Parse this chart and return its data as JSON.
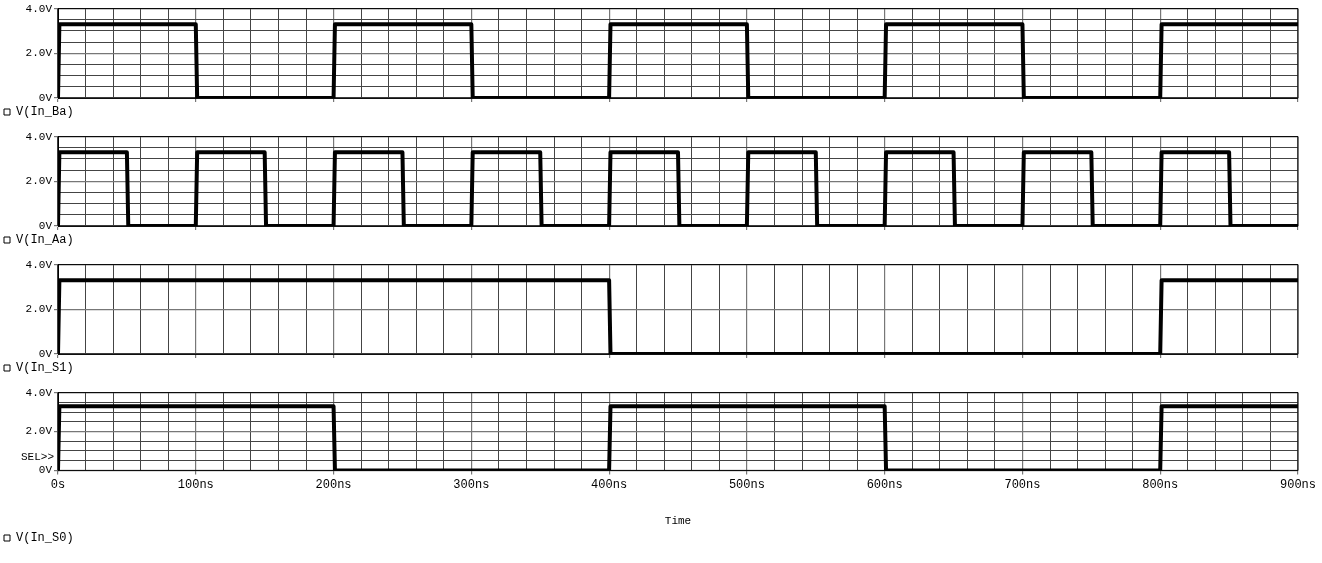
{
  "chart_data": [
    {
      "type": "line",
      "xlim": [
        0,
        900
      ],
      "ylim": [
        0,
        4
      ],
      "tick_labels": "y",
      "grid": true,
      "legend": "bottom left",
      "line_style": "solid",
      "xticks": [
        0,
        {
          "value": 20,
          "label": null
        },
        {
          "value": 40,
          "label": null
        },
        {
          "value": 60,
          "label": null
        },
        {
          "value": 80,
          "label": null
        },
        100,
        {
          "value": 120,
          "label": null
        },
        {
          "value": 140,
          "label": null
        },
        {
          "value": 160,
          "label": null
        },
        {
          "value": 180,
          "label": null
        },
        200,
        {
          "value": 220,
          "label": null
        },
        {
          "value": 240,
          "label": null
        },
        {
          "value": 260,
          "label": null
        },
        {
          "value": 280,
          "label": null
        },
        300,
        {
          "value": 320,
          "label": null
        },
        {
          "value": 340,
          "label": null
        },
        {
          "value": 360,
          "label": null
        },
        {
          "value": 380,
          "label": null
        },
        400,
        {
          "value": 420,
          "label": null
        },
        {
          "value": 440,
          "label": null
        },
        {
          "value": 460,
          "label": null
        },
        {
          "value": 480,
          "label": null
        },
        500,
        {
          "value": 520,
          "label": null
        },
        {
          "value": 540,
          "label": null
        },
        {
          "value": 560,
          "label": null
        },
        {
          "value": 580,
          "label": null
        },
        600,
        {
          "value": 620,
          "label": null
        },
        {
          "value": 640,
          "label": null
        },
        {
          "value": 660,
          "label": null
        },
        {
          "value": 680,
          "label": null
        },
        700,
        {
          "value": 720,
          "label": null
        },
        {
          "value": 740,
          "label": null
        },
        {
          "value": 760,
          "label": null
        },
        {
          "value": 780,
          "label": null
        },
        800,
        {
          "value": 820,
          "label": null
        },
        {
          "value": 840,
          "label": null
        },
        {
          "value": 860,
          "label": null
        },
        {
          "value": 880,
          "label": null
        },
        900
      ],
      "yticks": [
        {
          "value": 0,
          "label": "0V"
        },
        {
          "value": 0.5,
          "label": null
        },
        {
          "value": 1,
          "label": null
        },
        {
          "value": 1.5,
          "label": null
        },
        {
          "value": 2,
          "label": "2.0V"
        },
        {
          "value": 2.5,
          "label": null
        },
        {
          "value": 3,
          "label": null
        },
        {
          "value": 3.5,
          "label": null
        },
        {
          "value": 4,
          "label": "4.0V"
        }
      ],
      "series": [
        {
          "name": "V(In_Ba)",
          "color": "#000000",
          "x": [
            0,
            1,
            100,
            101,
            200,
            201,
            300,
            301,
            400,
            401,
            500,
            501,
            600,
            601,
            700,
            701,
            800,
            801,
            900
          ],
          "values": [
            0,
            3.3,
            3.3,
            0,
            0,
            3.3,
            3.3,
            0,
            0,
            3.3,
            3.3,
            0,
            0,
            3.3,
            3.3,
            0,
            0,
            3.3,
            3.3
          ]
        }
      ]
    },
    {
      "type": "line",
      "xlim": [
        0,
        900
      ],
      "ylim": [
        0,
        4
      ],
      "tick_labels": "y",
      "grid": true,
      "legend": "bottom left",
      "line_style": "solid",
      "xticks": [
        0,
        {
          "value": 20,
          "label": null
        },
        {
          "value": 40,
          "label": null
        },
        {
          "value": 60,
          "label": null
        },
        {
          "value": 80,
          "label": null
        },
        100,
        {
          "value": 120,
          "label": null
        },
        {
          "value": 140,
          "label": null
        },
        {
          "value": 160,
          "label": null
        },
        {
          "value": 180,
          "label": null
        },
        200,
        {
          "value": 220,
          "label": null
        },
        {
          "value": 240,
          "label": null
        },
        {
          "value": 260,
          "label": null
        },
        {
          "value": 280,
          "label": null
        },
        300,
        {
          "value": 320,
          "label": null
        },
        {
          "value": 340,
          "label": null
        },
        {
          "value": 360,
          "label": null
        },
        {
          "value": 380,
          "label": null
        },
        400,
        {
          "value": 420,
          "label": null
        },
        {
          "value": 440,
          "label": null
        },
        {
          "value": 460,
          "label": null
        },
        {
          "value": 480,
          "label": null
        },
        500,
        {
          "value": 520,
          "label": null
        },
        {
          "value": 540,
          "label": null
        },
        {
          "value": 560,
          "label": null
        },
        {
          "value": 580,
          "label": null
        },
        600,
        {
          "value": 620,
          "label": null
        },
        {
          "value": 640,
          "label": null
        },
        {
          "value": 660,
          "label": null
        },
        {
          "value": 680,
          "label": null
        },
        700,
        {
          "value": 720,
          "label": null
        },
        {
          "value": 740,
          "label": null
        },
        {
          "value": 760,
          "label": null
        },
        {
          "value": 780,
          "label": null
        },
        800,
        {
          "value": 820,
          "label": null
        },
        {
          "value": 840,
          "label": null
        },
        {
          "value": 860,
          "label": null
        },
        {
          "value": 880,
          "label": null
        },
        900
      ],
      "yticks": [
        {
          "value": 0,
          "label": "0V"
        },
        {
          "value": 0.5,
          "label": null
        },
        {
          "value": 1,
          "label": null
        },
        {
          "value": 1.5,
          "label": null
        },
        {
          "value": 2,
          "label": "2.0V"
        },
        {
          "value": 2.5,
          "label": null
        },
        {
          "value": 3,
          "label": null
        },
        {
          "value": 3.5,
          "label": null
        },
        {
          "value": 4,
          "label": "4.0V"
        }
      ],
      "series": [
        {
          "name": "V(In_Aa)",
          "color": "#000000",
          "x": [
            0,
            1,
            50,
            51,
            100,
            101,
            150,
            151,
            200,
            201,
            250,
            251,
            300,
            301,
            350,
            351,
            400,
            401,
            450,
            451,
            500,
            501,
            550,
            551,
            600,
            601,
            650,
            651,
            700,
            701,
            750,
            751,
            800,
            801,
            850,
            851,
            900
          ],
          "values": [
            0,
            3.3,
            3.3,
            0,
            0,
            3.3,
            3.3,
            0,
            0,
            3.3,
            3.3,
            0,
            0,
            3.3,
            3.3,
            0,
            0,
            3.3,
            3.3,
            0,
            0,
            3.3,
            3.3,
            0,
            0,
            3.3,
            3.3,
            0,
            0,
            3.3,
            3.3,
            0,
            0,
            3.3,
            3.3,
            0,
            0
          ]
        }
      ]
    },
    {
      "type": "line",
      "xlim": [
        0,
        900
      ],
      "ylim": [
        0,
        4
      ],
      "tick_labels": "y",
      "grid": true,
      "legend": "bottom left",
      "line_style": "solid",
      "xticks": [
        0,
        {
          "value": 20,
          "label": null
        },
        {
          "value": 40,
          "label": null
        },
        {
          "value": 60,
          "label": null
        },
        {
          "value": 80,
          "label": null
        },
        100,
        {
          "value": 120,
          "label": null
        },
        {
          "value": 140,
          "label": null
        },
        {
          "value": 160,
          "label": null
        },
        {
          "value": 180,
          "label": null
        },
        200,
        {
          "value": 220,
          "label": null
        },
        {
          "value": 240,
          "label": null
        },
        {
          "value": 260,
          "label": null
        },
        {
          "value": 280,
          "label": null
        },
        300,
        {
          "value": 320,
          "label": null
        },
        {
          "value": 340,
          "label": null
        },
        {
          "value": 360,
          "label": null
        },
        {
          "value": 380,
          "label": null
        },
        400,
        {
          "value": 420,
          "label": null
        },
        {
          "value": 440,
          "label": null
        },
        {
          "value": 460,
          "label": null
        },
        {
          "value": 480,
          "label": null
        },
        500,
        {
          "value": 520,
          "label": null
        },
        {
          "value": 540,
          "label": null
        },
        {
          "value": 560,
          "label": null
        },
        {
          "value": 580,
          "label": null
        },
        600,
        {
          "value": 620,
          "label": null
        },
        {
          "value": 640,
          "label": null
        },
        {
          "value": 660,
          "label": null
        },
        {
          "value": 680,
          "label": null
        },
        700,
        {
          "value": 720,
          "label": null
        },
        {
          "value": 740,
          "label": null
        },
        {
          "value": 760,
          "label": null
        },
        {
          "value": 780,
          "label": null
        },
        800,
        {
          "value": 820,
          "label": null
        },
        {
          "value": 840,
          "label": null
        },
        {
          "value": 860,
          "label": null
        },
        {
          "value": 880,
          "label": null
        },
        900
      ],
      "yticks": [
        {
          "value": 0,
          "label": "0V"
        },
        {
          "value": 2,
          "label": "2.0V"
        },
        {
          "value": 4,
          "label": "4.0V"
        }
      ],
      "series": [
        {
          "name": "V(In_S1)",
          "color": "#000000",
          "x": [
            0,
            1,
            400,
            401,
            800,
            801,
            900
          ],
          "values": [
            0,
            3.3,
            3.3,
            0,
            0,
            3.3,
            3.3
          ]
        }
      ]
    },
    {
      "type": "line",
      "xlim": [
        0,
        900
      ],
      "ylim": [
        0,
        4
      ],
      "grid": true,
      "legend": "bottom left",
      "line_style": "solid",
      "xlabel": "Time",
      "annotations": [
        "SEL>>"
      ],
      "xticks": [
        {
          "value": 0,
          "label": "0s"
        },
        {
          "value": 20,
          "label": null
        },
        {
          "value": 40,
          "label": null
        },
        {
          "value": 60,
          "label": null
        },
        {
          "value": 80,
          "label": null
        },
        {
          "value": 100,
          "label": "100ns"
        },
        {
          "value": 120,
          "label": null
        },
        {
          "value": 140,
          "label": null
        },
        {
          "value": 160,
          "label": null
        },
        {
          "value": 180,
          "label": null
        },
        {
          "value": 200,
          "label": "200ns"
        },
        {
          "value": 220,
          "label": null
        },
        {
          "value": 240,
          "label": null
        },
        {
          "value": 260,
          "label": null
        },
        {
          "value": 280,
          "label": null
        },
        {
          "value": 300,
          "label": "300ns"
        },
        {
          "value": 320,
          "label": null
        },
        {
          "value": 340,
          "label": null
        },
        {
          "value": 360,
          "label": null
        },
        {
          "value": 380,
          "label": null
        },
        {
          "value": 400,
          "label": "400ns"
        },
        {
          "value": 420,
          "label": null
        },
        {
          "value": 440,
          "label": null
        },
        {
          "value": 460,
          "label": null
        },
        {
          "value": 480,
          "label": null
        },
        {
          "value": 500,
          "label": "500ns"
        },
        {
          "value": 520,
          "label": null
        },
        {
          "value": 540,
          "label": null
        },
        {
          "value": 560,
          "label": null
        },
        {
          "value": 580,
          "label": null
        },
        {
          "value": 600,
          "label": "600ns"
        },
        {
          "value": 620,
          "label": null
        },
        {
          "value": 640,
          "label": null
        },
        {
          "value": 660,
          "label": null
        },
        {
          "value": 680,
          "label": null
        },
        {
          "value": 700,
          "label": "700ns"
        },
        {
          "value": 720,
          "label": null
        },
        {
          "value": 740,
          "label": null
        },
        {
          "value": 760,
          "label": null
        },
        {
          "value": 780,
          "label": null
        },
        {
          "value": 800,
          "label": "800ns"
        },
        {
          "value": 820,
          "label": null
        },
        {
          "value": 840,
          "label": null
        },
        {
          "value": 860,
          "label": null
        },
        {
          "value": 880,
          "label": null
        },
        {
          "value": 900,
          "label": "900ns"
        }
      ],
      "yticks": [
        {
          "value": 0,
          "label": "0V"
        },
        {
          "value": 0.5,
          "label": null
        },
        {
          "value": 1,
          "label": null
        },
        {
          "value": 1.5,
          "label": null
        },
        {
          "value": 2,
          "label": "2.0V"
        },
        {
          "value": 2.5,
          "label": null
        },
        {
          "value": 3,
          "label": null
        },
        {
          "value": 3.5,
          "label": null
        },
        {
          "value": 4,
          "label": "4.0V"
        }
      ],
      "series": [
        {
          "name": "V(In_S0)",
          "color": "#000000",
          "x": [
            0,
            1,
            200,
            201,
            400,
            401,
            600,
            601,
            800,
            801,
            900
          ],
          "values": [
            0,
            3.3,
            3.3,
            0,
            0,
            3.3,
            3.3,
            0,
            0,
            3.3,
            3.3
          ]
        }
      ]
    }
  ]
}
